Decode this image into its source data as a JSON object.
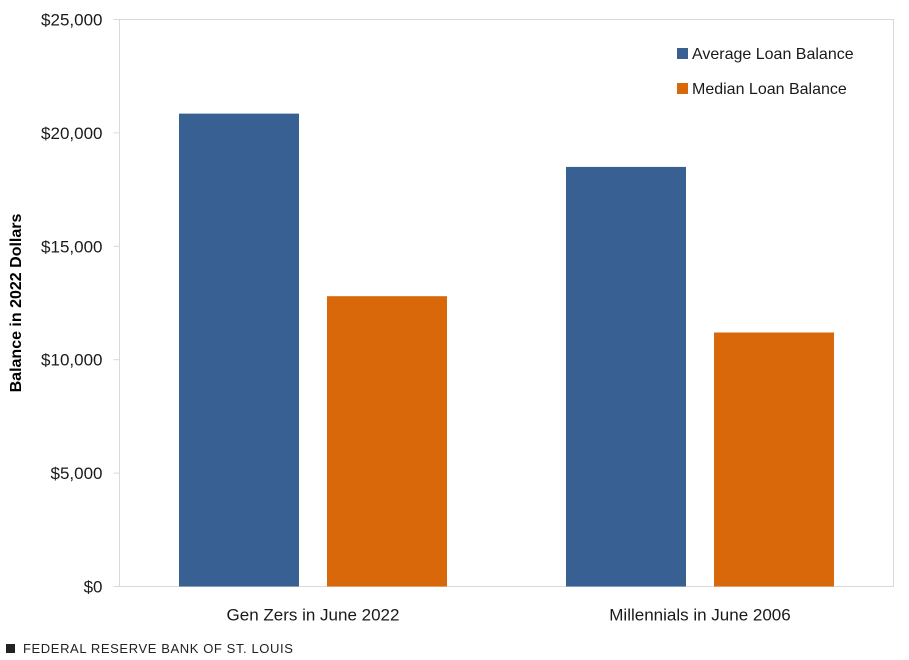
{
  "chart_data": {
    "type": "bar",
    "categories": [
      "Gen Zers in June 2022",
      "Millennials in June 2006"
    ],
    "series": [
      {
        "name": "Average Loan Balance",
        "values": [
          20850,
          18500
        ],
        "color": "#386092"
      },
      {
        "name": "Median Loan Balance",
        "values": [
          12800,
          11200
        ],
        "color": "#d9680b"
      }
    ],
    "ylabel": "Balance in 2022 Dollars",
    "ylim": [
      0,
      25000
    ],
    "yticks": [
      0,
      5000,
      10000,
      15000,
      20000,
      25000
    ],
    "ytick_labels": [
      "$0",
      "$5,000",
      "$10,000",
      "$15,000",
      "$20,000",
      "$25,000"
    ],
    "grid": false,
    "legend_position": "top-right"
  },
  "footer": {
    "source": "FEDERAL RESERVE BANK OF ST. LOUIS"
  }
}
